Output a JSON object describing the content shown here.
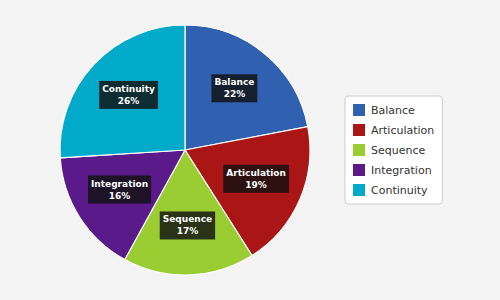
{
  "chart_data": {
    "type": "pie",
    "categories": [
      "Balance",
      "Articulation",
      "Sequence",
      "Integration",
      "Continuity"
    ],
    "values": [
      22,
      19,
      17,
      16,
      26
    ],
    "value_labels": [
      "22%",
      "19%",
      "17%",
      "16%",
      "26%"
    ],
    "colors": [
      "#3060b0",
      "#aa1515",
      "#9acd32",
      "#5a1a8a",
      "#00aac8"
    ],
    "data_labels": true,
    "legend": "right"
  }
}
